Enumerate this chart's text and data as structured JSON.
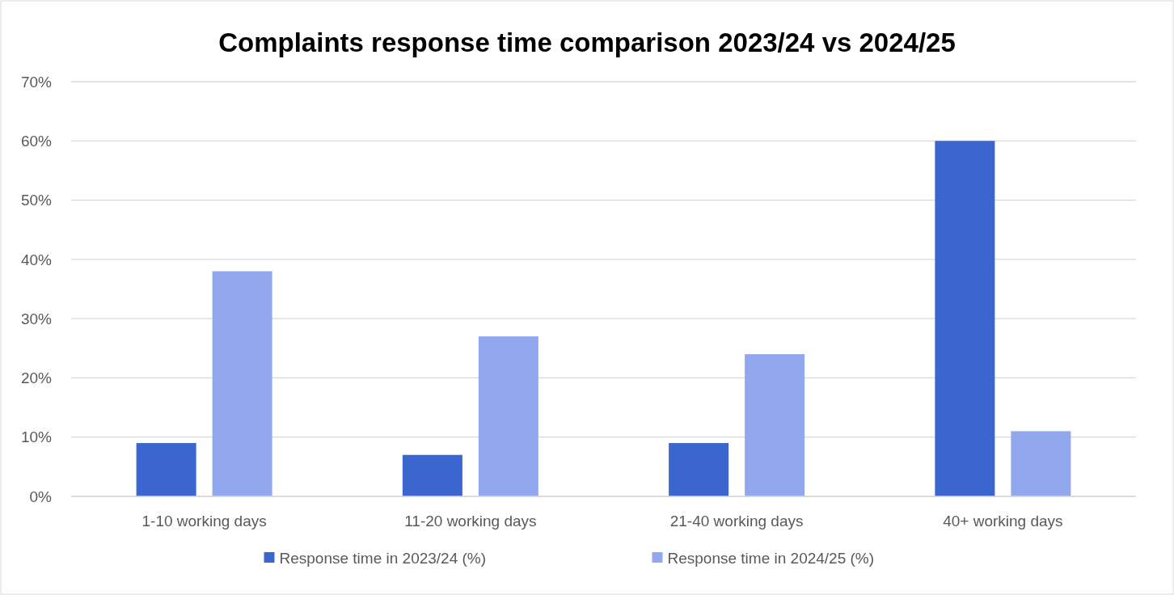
{
  "chart_data": {
    "type": "bar",
    "title": "Complaints response time comparison 2023/24 vs 2024/25",
    "categories": [
      "1-10 working days",
      "11-20 working days",
      "21-40 working days",
      "40+ working days"
    ],
    "series": [
      {
        "name": "Response time in 2023/24 (%)",
        "color": "#3c66cf",
        "values": [
          9,
          7,
          9,
          60
        ]
      },
      {
        "name": "Response time in 2024/25 (%)",
        "color": "#91a7ee",
        "values": [
          38,
          27,
          24,
          11
        ]
      }
    ],
    "ylim": [
      0,
      70
    ],
    "yticks": [
      {
        "value": 0,
        "label": "0%"
      },
      {
        "value": 10,
        "label": "10%"
      },
      {
        "value": 20,
        "label": "20%"
      },
      {
        "value": 30,
        "label": "30%"
      },
      {
        "value": 40,
        "label": "40%"
      },
      {
        "value": 50,
        "label": "50%"
      },
      {
        "value": 60,
        "label": "60%"
      },
      {
        "value": 70,
        "label": "70%"
      }
    ],
    "grid": "y",
    "legend": "bottom"
  }
}
